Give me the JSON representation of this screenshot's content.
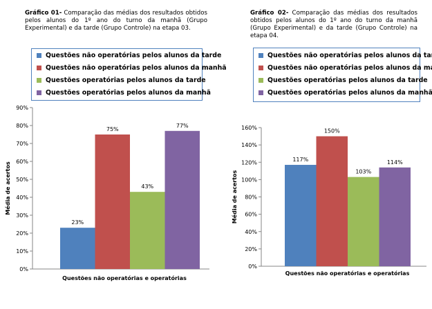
{
  "colors": {
    "series": [
      "#4f81bd",
      "#c0504d",
      "#9bbb59",
      "#8064a2"
    ],
    "legend_border": "#4f81bd"
  },
  "chart_data": [
    {
      "type": "bar",
      "caption_bold": "Gráfico 01-",
      "caption_text": " Comparação das médias dos resultados obtidos pelos alunos do 1º ano do turno da manhã (Grupo Experimental) e da tarde (Grupo Controle) na etapa 03.",
      "categories": [
        "Questões não operatórias e operatórias"
      ],
      "xlabel": "Questões não operatórias e operatórias",
      "ylabel": "Média de acertos",
      "ylim": [
        0,
        90
      ],
      "ystep": 10,
      "yticks": [
        "0%",
        "10%",
        "20%",
        "30%",
        "40%",
        "50%",
        "60%",
        "70%",
        "80%",
        "90%"
      ],
      "series": [
        {
          "name": "Questões não operatórias pelos alunos da tarde",
          "values": [
            23
          ],
          "label": "23%"
        },
        {
          "name": "Questões não operatórias pelos alunos da manhã",
          "values": [
            75
          ],
          "label": "75%"
        },
        {
          "name": "Questões operatórias pelos alunos da tarde",
          "values": [
            43
          ],
          "label": "43%"
        },
        {
          "name": "Questões operatórias pelos alunos da manhã",
          "values": [
            77
          ],
          "label": "77%"
        }
      ],
      "legend": "top"
    },
    {
      "type": "bar",
      "caption_bold": "Gráfico 02-",
      "caption_text": " Comparação das médias dos resultados obtidos pelos alunos do 1º ano do turno da manhã (Grupo Experimental) e da tarde (Grupo Controle) na etapa 04.",
      "categories": [
        "Questões não operatórias e operatórias"
      ],
      "xlabel": "Questões não operatórias e operatórias",
      "ylabel": "Média de acertos",
      "ylim": [
        0,
        160
      ],
      "ystep": 20,
      "yticks": [
        "0%",
        "20%",
        "40%",
        "60%",
        "80%",
        "100%",
        "120%",
        "140%",
        "160%"
      ],
      "series": [
        {
          "name": "Questões não operatórias pelos alunos da tarde",
          "values": [
            117
          ],
          "label": "117%"
        },
        {
          "name": "Questões não operatórias pelos alunos da manhã",
          "values": [
            150
          ],
          "label": "150%"
        },
        {
          "name": "Questões operatórias pelos alunos da tarde",
          "values": [
            103
          ],
          "label": "103%"
        },
        {
          "name": "Questões operatórias pelos alunos da manhã",
          "values": [
            114
          ],
          "label": "114%"
        }
      ],
      "legend": "top"
    }
  ]
}
